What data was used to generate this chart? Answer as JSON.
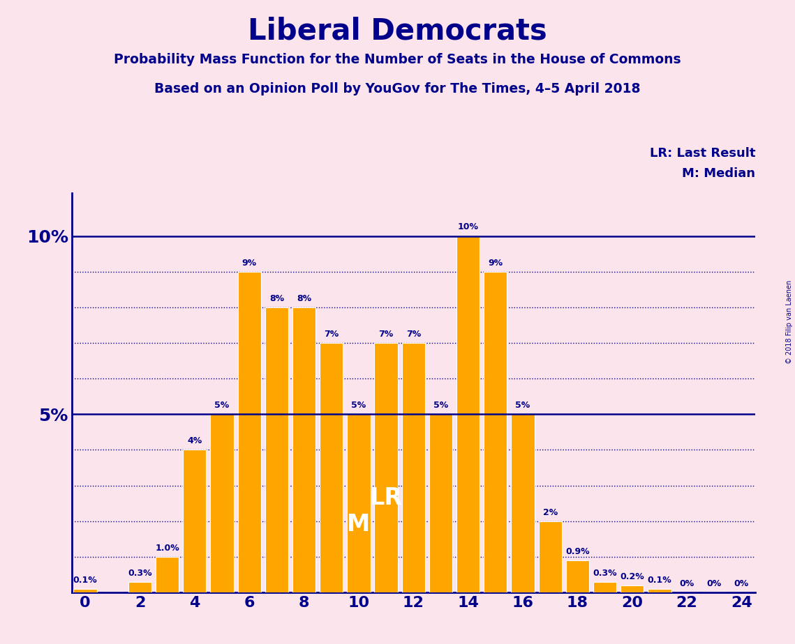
{
  "title": "Liberal Democrats",
  "subtitle1": "Probability Mass Function for the Number of Seats in the House of Commons",
  "subtitle2": "Based on an Opinion Poll by YouGov for The Times, 4–5 April 2018",
  "copyright": "© 2018 Filip van Laenen",
  "background_color": "#fce4ec",
  "bar_color": "#FFA500",
  "text_color": "#00008B",
  "axis_color": "#00008B",
  "seats": [
    0,
    1,
    2,
    3,
    4,
    5,
    6,
    7,
    8,
    9,
    10,
    11,
    12,
    13,
    14,
    15,
    16,
    17,
    18,
    19,
    20,
    21,
    22,
    23,
    24
  ],
  "probabilities": [
    0.1,
    0.0,
    0.3,
    1.0,
    4.0,
    5.0,
    9.0,
    8.0,
    8.0,
    7.0,
    5.0,
    7.0,
    7.0,
    5.0,
    10.0,
    9.0,
    5.0,
    2.0,
    0.9,
    0.3,
    0.2,
    0.1,
    0.0,
    0.0,
    0.0
  ],
  "labels": [
    "0.1%",
    "",
    "0.3%",
    "1.0%",
    "4%",
    "5%",
    "9%",
    "8%",
    "8%",
    "7%",
    "5%",
    "7%",
    "7%",
    "5%",
    "10%",
    "9%",
    "5%",
    "2%",
    "0.9%",
    "0.3%",
    "0.2%",
    "0.1%",
    "0%",
    "0%",
    "0%"
  ],
  "median_seat": 10,
  "last_result_seat": 11,
  "xlim": [
    -0.5,
    24.5
  ],
  "ylim": [
    0,
    11.2
  ],
  "solid_hlines": [
    5.0,
    10.0
  ],
  "dotted_hlines": [
    1.0,
    2.0,
    3.0,
    4.0,
    6.0,
    7.0,
    8.0,
    9.0
  ],
  "ytick_major": [
    5.0,
    10.0
  ],
  "ytick_major_labels": [
    "5%",
    "10%"
  ],
  "lr_label": "LR: Last Result",
  "median_label": "M: Median"
}
